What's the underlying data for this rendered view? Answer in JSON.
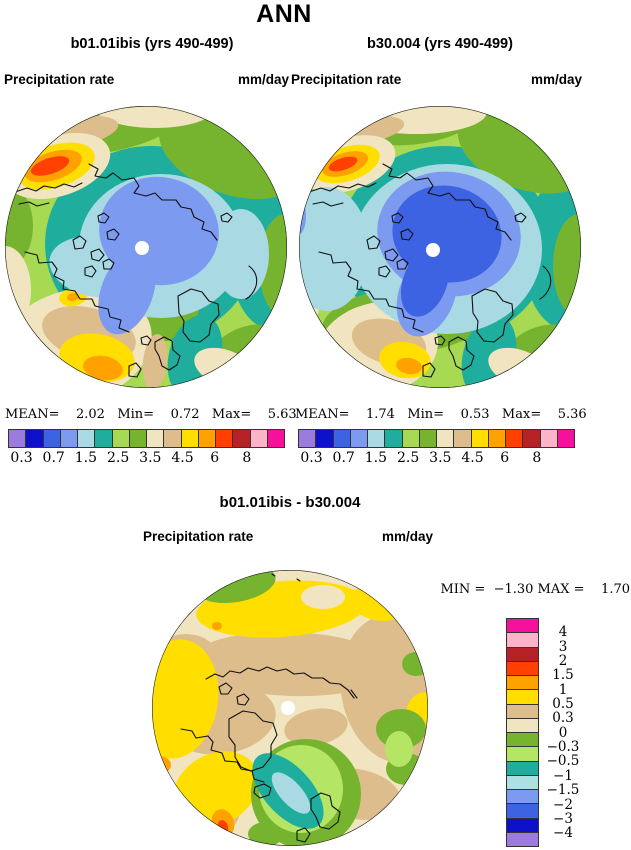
{
  "page_title": "ANN",
  "panels": [
    {
      "subtitle": "b01.01ibis (yrs 490-499)",
      "field_label": "Precipitation rate",
      "units": "mm/day",
      "stats_line": "MEAN=    2.02   Min=    0.72   Max=    5.63"
    },
    {
      "subtitle": "b30.004 (yrs 490-499)",
      "field_label": "Precipitation rate",
      "units": "mm/day",
      "stats_line": "MEAN=    1.74   Min=    0.53   Max=    5.36"
    }
  ],
  "diff_panel": {
    "title": "b01.01ibis - b30.004",
    "field_label": "Precipitation rate",
    "units": "mm/day",
    "minmax_line": "MIN =  −1.30 MAX =    1.70"
  },
  "precip_colorbar": {
    "colors": [
      "#9B7CDE",
      "#0F10C9",
      "#3D63E2",
      "#7C9AF0",
      "#A9DAE4",
      "#1FAE9E",
      "#A7DA52",
      "#76B42F",
      "#F0E5C0",
      "#DEBD8C",
      "#FFDE00",
      "#FFA200",
      "#FF4000",
      "#B52125",
      "#FFB3C8",
      "#F5119B"
    ],
    "tick_labels": [
      "0.3",
      "0.7",
      "1.5",
      "2.5",
      "3.5",
      "4.5",
      "6",
      "8"
    ]
  },
  "diff_colorbar": {
    "colors": [
      "#F5119B",
      "#FFB3C8",
      "#B52125",
      "#FF4000",
      "#FFA200",
      "#FFDE00",
      "#DEBD8C",
      "#F0E5C0",
      "#76B42F",
      "#B5E564",
      "#1FAE9E",
      "#ACE0E2",
      "#7C9AF0",
      "#3D63E2",
      "#0F10C9",
      "#9B7CDE"
    ],
    "tick_labels": [
      "4",
      "3",
      "2",
      "1.5",
      "1",
      "0.5",
      "0.3",
      "0",
      "−0.3",
      "−0.5",
      "−1",
      "−1.5",
      "−2",
      "−3",
      "−4"
    ]
  },
  "palette": {
    "purple": "#9B7CDE",
    "navy": "#0F10C9",
    "royal": "#3D63E2",
    "cornflower": "#7C9AF0",
    "pale_cyan": "#A9DAE4",
    "teal": "#1FAE9E",
    "yellow_green": "#A7DA52",
    "green": "#76B42F",
    "cream": "#F0E5C0",
    "tan": "#DEBD8C",
    "yellow": "#FFDE00",
    "orange": "#FFA200",
    "red_orange": "#FF4000",
    "brick": "#B52125",
    "pink": "#FFB3C8",
    "magenta": "#F5119B",
    "light_green": "#B5E564",
    "white": "#FFFFFF",
    "coast": "#101010",
    "boundary": "#222222"
  },
  "chart_data": [
    {
      "type": "heatmap",
      "subtype": "north-polar filled contour map",
      "title": "b01.01ibis (yrs 490-499)",
      "variable": "Precipitation rate",
      "units": "mm/day",
      "stats": {
        "mean": 2.02,
        "min": 0.72,
        "max": 5.63
      },
      "tick_levels": [
        0.3,
        0.7,
        1.5,
        2.5,
        3.5,
        4.5,
        6,
        8
      ],
      "n_colors": 16,
      "legend_position": "below"
    },
    {
      "type": "heatmap",
      "subtype": "north-polar filled contour map",
      "title": "b30.004 (yrs 490-499)",
      "variable": "Precipitation rate",
      "units": "mm/day",
      "stats": {
        "mean": 1.74,
        "min": 0.53,
        "max": 5.36
      },
      "tick_levels": [
        0.3,
        0.7,
        1.5,
        2.5,
        3.5,
        4.5,
        6,
        8
      ],
      "n_colors": 16,
      "legend_position": "below"
    },
    {
      "type": "heatmap",
      "subtype": "north-polar filled contour difference map",
      "title": "b01.01ibis - b30.004",
      "variable": "Precipitation rate",
      "units": "mm/day",
      "stats": {
        "min": -1.3,
        "max": 1.7
      },
      "tick_levels": [
        4,
        3,
        2,
        1.5,
        1,
        0.5,
        0.3,
        0,
        -0.3,
        -0.5,
        -1,
        -1.5,
        -2,
        -3,
        -4
      ],
      "n_colors": 16,
      "legend_position": "right"
    }
  ]
}
